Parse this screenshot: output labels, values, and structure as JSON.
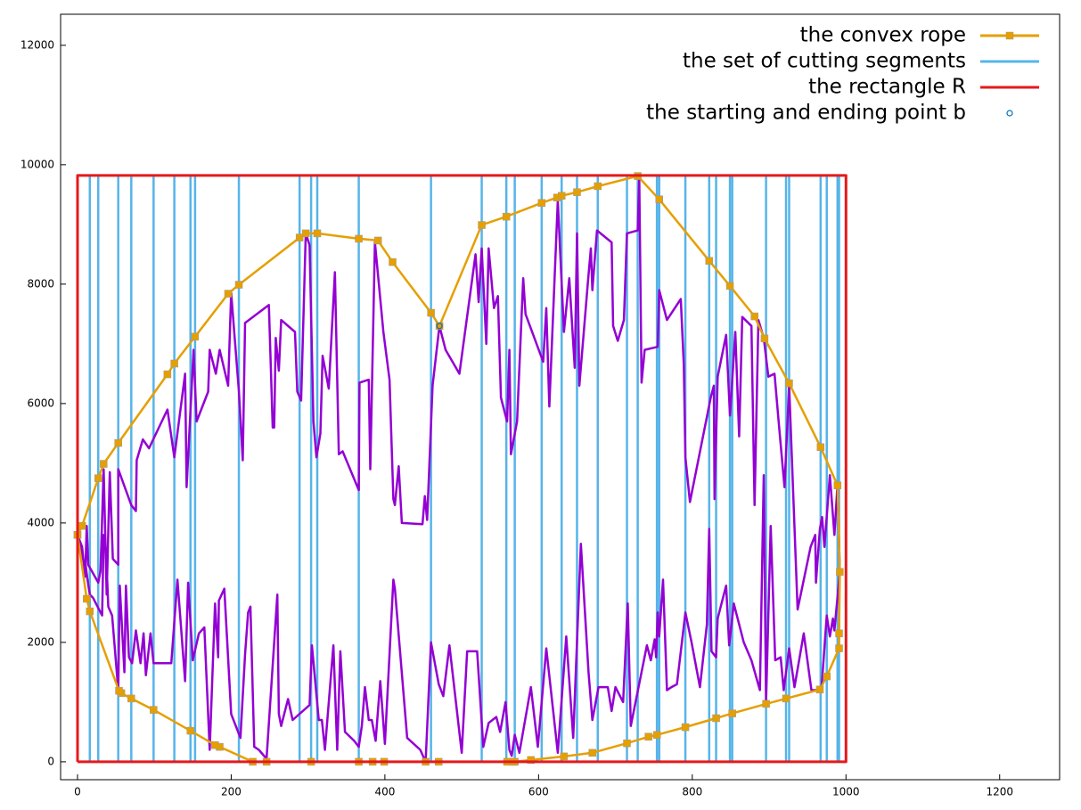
{
  "chart_data": {
    "type": "line",
    "xlim": [
      -22,
      1278
    ],
    "ylim": [
      -300,
      12520
    ],
    "xticks": [
      0,
      200,
      400,
      600,
      800,
      1000,
      1200
    ],
    "yticks": [
      0,
      2000,
      4000,
      6000,
      8000,
      10000,
      12000
    ],
    "legend": "top-right",
    "series": [
      {
        "name": "the convex rope",
        "color": "#e69f00",
        "style": "linepoints",
        "x": [
          0,
          6,
          27,
          34,
          53,
          117,
          126,
          153,
          196,
          210,
          289,
          297,
          312,
          366,
          391,
          410,
          460,
          471,
          526,
          558,
          604,
          624,
          630,
          650,
          677,
          729,
          757,
          822,
          849,
          881,
          894,
          926,
          967,
          989,
          992,
          991,
          991,
          975,
          966,
          922,
          896,
          852,
          831,
          791,
          754,
          743,
          715,
          670,
          633,
          590,
          569,
          566,
          559,
          470,
          453,
          399,
          384,
          366,
          304,
          246,
          228,
          185,
          179,
          147,
          99,
          70,
          57,
          54,
          16,
          12,
          0
        ],
        "values": [
          3800,
          3950,
          4750,
          4990,
          5340,
          6490,
          6670,
          7120,
          7840,
          7990,
          8780,
          8850,
          8850,
          8760,
          8730,
          8370,
          7520,
          7300,
          8990,
          9130,
          9360,
          9450,
          9480,
          9540,
          9640,
          9810,
          9420,
          8390,
          7970,
          7460,
          7090,
          6340,
          5270,
          4630,
          3180,
          2150,
          1900,
          1430,
          1210,
          1060,
          970,
          810,
          730,
          580,
          450,
          420,
          310,
          150,
          90,
          30,
          0,
          0,
          0,
          0,
          0,
          0,
          0,
          0,
          0,
          0,
          0,
          250,
          280,
          520,
          870,
          1060,
          1150,
          1190,
          2520,
          2730,
          3800
        ]
      },
      {
        "name": "the set of cutting segments",
        "color": "#56b4e9",
        "style": "vlines",
        "x": [
          0,
          16,
          27,
          53,
          70,
          99,
          126,
          147,
          153,
          210,
          289,
          304,
          312,
          366,
          460,
          526,
          558,
          569,
          604,
          630,
          650,
          677,
          715,
          729,
          754,
          757,
          791,
          822,
          831,
          849,
          852,
          896,
          922,
          926,
          967,
          975,
          989,
          991
        ]
      },
      {
        "name": "the rectangle R",
        "color": "#e41a1c",
        "style": "rect",
        "x": [
          0,
          1000,
          1000,
          0,
          0
        ],
        "values": [
          0,
          0,
          9820,
          9820,
          0
        ]
      },
      {
        "name": "the starting and ending point b",
        "color": "#0072b2",
        "style": "points",
        "x": [
          471
        ],
        "values": [
          7300
        ]
      },
      {
        "color": "#9400d3",
        "style": "line",
        "x": [
          0,
          6,
          10,
          12,
          14,
          27,
          30,
          34,
          38,
          42,
          46,
          53,
          53,
          70,
          76,
          77,
          85,
          93,
          117,
          126,
          140,
          142,
          151,
          155,
          170,
          172,
          180,
          185,
          196,
          200,
          210,
          215,
          218,
          249,
          254,
          256,
          258,
          262,
          265,
          283,
          286,
          291,
          297,
          302,
          307,
          311,
          316,
          319,
          327,
          335,
          340,
          345,
          366,
          367,
          379,
          381,
          387,
          398,
          406,
          411,
          413,
          418,
          422,
          449,
          452,
          455,
          462,
          471,
          479,
          497,
          518,
          522,
          526,
          532,
          535,
          542,
          547,
          551,
          559,
          562,
          564,
          572,
          580,
          583,
          606,
          610,
          614,
          625,
          633,
          640,
          647,
          650,
          653,
          664,
          668,
          670,
          676,
          695,
          697,
          703,
          711,
          715,
          729,
          731,
          734,
          738,
          755,
          757,
          767,
          785,
          789,
          791,
          797,
          824,
          828,
          829,
          833,
          844,
          849,
          856,
          861,
          865,
          877,
          881,
          886,
          893,
          899,
          907,
          913,
          920,
          926,
          937,
          954,
          960,
          961,
          966,
          969,
          972,
          979,
          985,
          989,
          992,
          985,
          983,
          979,
          975,
          968,
          955,
          945,
          933,
          926,
          919,
          915,
          908,
          902,
          896,
          893,
          888,
          877,
          867,
          854,
          848,
          844,
          833,
          831,
          825,
          822,
          819,
          810,
          799,
          791,
          780,
          773,
          767,
          762,
          757,
          755,
          753,
          751,
          746,
          741,
          720,
          716,
          710,
          700,
          695,
          690,
          678,
          670,
          665,
          655,
          645,
          636,
          625,
          610,
          599,
          590,
          575,
          569,
          565,
          562,
          557,
          550,
          545,
          535,
          528,
          520,
          507,
          500,
          484,
          476,
          470,
          460,
          453,
          446,
          429,
          413,
          411,
          400,
          394,
          388,
          383,
          379,
          374,
          370,
          366,
          360,
          348,
          342,
          338,
          333,
          322,
          318,
          314,
          305,
          302,
          280,
          274,
          265,
          262,
          260,
          246,
          236,
          230,
          225,
          222,
          218,
          212,
          200,
          191,
          184,
          183,
          179,
          172,
          165,
          158,
          150,
          144,
          140,
          130,
          122,
          99,
          95,
          89,
          86,
          82,
          76,
          71,
          67,
          63,
          61,
          55,
          53,
          45,
          40,
          37,
          34,
          32,
          20,
          16,
          13,
          10,
          6,
          0
        ],
        "values": [
          3800,
          3600,
          3100,
          3950,
          3300,
          3000,
          3200,
          4900,
          2800,
          4850,
          3400,
          3300,
          4900,
          4300,
          4200,
          5050,
          5400,
          5250,
          5900,
          5100,
          6500,
          4600,
          6900,
          5700,
          6200,
          6900,
          6500,
          6900,
          6300,
          7850,
          6200,
          5050,
          7350,
          7650,
          5600,
          5600,
          7100,
          6550,
          7400,
          7200,
          6200,
          6050,
          8850,
          8650,
          5700,
          5100,
          5500,
          6800,
          6250,
          8200,
          5150,
          5200,
          4550,
          6350,
          6400,
          4900,
          8700,
          7200,
          6400,
          4400,
          4300,
          4950,
          4000,
          3980,
          4450,
          4050,
          6300,
          7300,
          6900,
          6500,
          8500,
          7700,
          8600,
          7000,
          8600,
          7600,
          7800,
          6100,
          5700,
          6900,
          5150,
          5700,
          8100,
          7500,
          6700,
          7600,
          5950,
          9400,
          7200,
          8100,
          6600,
          8850,
          6300,
          8000,
          8600,
          7900,
          8900,
          8700,
          7300,
          7050,
          7400,
          8850,
          8900,
          9800,
          6350,
          6900,
          6950,
          7900,
          7400,
          7750,
          6650,
          5100,
          4350,
          6100,
          6300,
          4400,
          6450,
          7150,
          5800,
          7200,
          5450,
          7450,
          7300,
          4300,
          7400,
          7100,
          6450,
          6500,
          5600,
          4600,
          6300,
          2550,
          3600,
          3800,
          3000,
          3900,
          4100,
          3600,
          4800,
          3800,
          4650,
          3180,
          2200,
          2400,
          2100,
          2450,
          1200,
          1200,
          2150,
          1250,
          1900,
          1200,
          1750,
          1700,
          3950,
          1000,
          4800,
          1200,
          1700,
          2000,
          2650,
          1950,
          2950,
          2400,
          1750,
          1850,
          3900,
          2300,
          1250,
          2000,
          2500,
          1300,
          1250,
          1200,
          3050,
          2100,
          2500,
          1750,
          2050,
          1700,
          1950,
          600,
          2650,
          1000,
          1250,
          850,
          1250,
          1250,
          700,
          1500,
          3650,
          400,
          2100,
          150,
          1900,
          250,
          1250,
          150,
          450,
          100,
          200,
          1000,
          500,
          750,
          650,
          250,
          1850,
          1850,
          150,
          1950,
          1100,
          1300,
          2000,
          0,
          200,
          400,
          2900,
          3050,
          300,
          1350,
          350,
          700,
          700,
          1250,
          600,
          250,
          350,
          500,
          1850,
          200,
          1950,
          200,
          700,
          700,
          1950,
          950,
          700,
          1050,
          600,
          800,
          2800,
          50,
          200,
          250,
          2600,
          2500,
          1800,
          400,
          800,
          2900,
          2700,
          1750,
          2650,
          200,
          2250,
          2150,
          1700,
          3000,
          1350,
          3050,
          1650,
          1650,
          2150,
          1450,
          2150,
          1650,
          2200,
          1650,
          1750,
          2950,
          1500,
          2950,
          1200,
          2450,
          2600,
          3550,
          3800,
          2450,
          2750,
          2800,
          3050,
          3350,
          3400,
          3800
        ]
      }
    ]
  }
}
